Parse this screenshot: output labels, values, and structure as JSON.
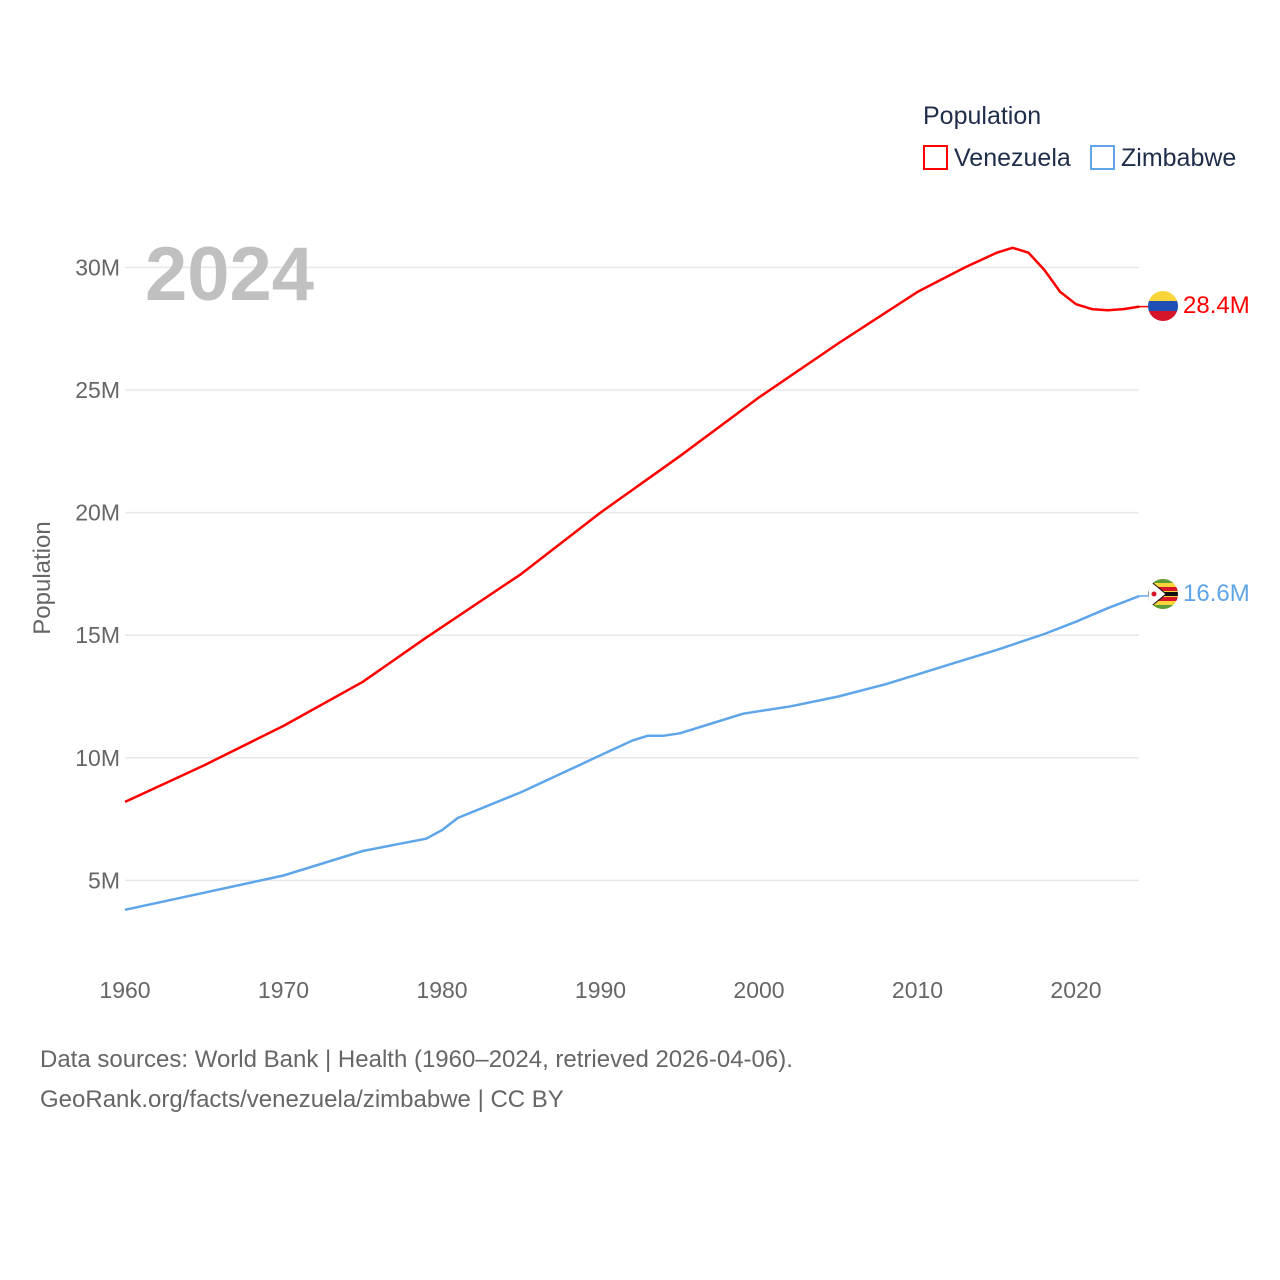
{
  "chart_data": {
    "type": "line",
    "title": "Population",
    "year_label": "2024",
    "xlabel": "",
    "ylabel": "Population",
    "xlim": [
      1960,
      2024
    ],
    "ylim": [
      0,
      32
    ],
    "x_ticks": [
      "1960",
      "1970",
      "1980",
      "1990",
      "2000",
      "2010",
      "2020"
    ],
    "y_ticks": [
      {
        "value": 5,
        "label": "5M"
      },
      {
        "value": 10,
        "label": "10M"
      },
      {
        "value": 15,
        "label": "15M"
      },
      {
        "value": 20,
        "label": "20M"
      },
      {
        "value": 25,
        "label": "25M"
      },
      {
        "value": 30,
        "label": "30M"
      }
    ],
    "grid": true,
    "legend_placement": "top-right",
    "series": [
      {
        "name": "Venezuela",
        "color": "#ff0000",
        "end_label": "28.4M",
        "flag": "venezuela-flag",
        "points": [
          [
            1960,
            8.2
          ],
          [
            1965,
            9.7
          ],
          [
            1970,
            11.3
          ],
          [
            1975,
            13.1
          ],
          [
            1979,
            14.9
          ],
          [
            1985,
            17.5
          ],
          [
            1990,
            20.0
          ],
          [
            1995,
            22.3
          ],
          [
            2000,
            24.7
          ],
          [
            2005,
            26.9
          ],
          [
            2010,
            29.0
          ],
          [
            2013,
            30.0
          ],
          [
            2015,
            30.6
          ],
          [
            2016,
            30.8
          ],
          [
            2017,
            30.6
          ],
          [
            2018,
            29.9
          ],
          [
            2019,
            29.0
          ],
          [
            2020,
            28.5
          ],
          [
            2021,
            28.3
          ],
          [
            2022,
            28.25
          ],
          [
            2023,
            28.3
          ],
          [
            2024,
            28.4
          ]
        ]
      },
      {
        "name": "Zimbabwe",
        "color": "#5ea5ea",
        "end_label": "16.6M",
        "flag": "zimbabwe-flag",
        "points": [
          [
            1960,
            3.8
          ],
          [
            1965,
            4.5
          ],
          [
            1970,
            5.2
          ],
          [
            1975,
            6.2
          ],
          [
            1977,
            6.45
          ],
          [
            1979,
            6.7
          ],
          [
            1980,
            7.05
          ],
          [
            1981,
            7.55
          ],
          [
            1985,
            8.6
          ],
          [
            1990,
            10.1
          ],
          [
            1992,
            10.7
          ],
          [
            1993,
            10.9
          ],
          [
            1994,
            10.9
          ],
          [
            1995,
            11.0
          ],
          [
            1997,
            11.4
          ],
          [
            1999,
            11.8
          ],
          [
            2000,
            11.9
          ],
          [
            2002,
            12.1
          ],
          [
            2005,
            12.5
          ],
          [
            2008,
            13.0
          ],
          [
            2010,
            13.4
          ],
          [
            2012,
            13.8
          ],
          [
            2015,
            14.4
          ],
          [
            2018,
            15.05
          ],
          [
            2020,
            15.55
          ],
          [
            2022,
            16.1
          ],
          [
            2024,
            16.6
          ]
        ]
      }
    ]
  },
  "footer": {
    "line1": "Data sources: World Bank | Health (1960–2024, retrieved 2026-04-06).",
    "line2": "GeoRank.org/facts/venezuela/zimbabwe | CC BY"
  }
}
